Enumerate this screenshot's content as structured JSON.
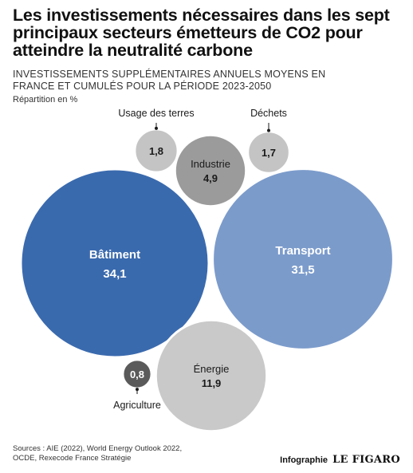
{
  "title": "Les investissements nécessaires dans les sept principaux secteurs émetteurs de CO2 pour atteindre la neutralité carbone",
  "subtitle": "INVESTISSEMENTS SUPPLÉMENTAIRES ANNUELS MOYENS EN FRANCE ET CUMULÉS POUR LA PÉRIODE 2023-2050",
  "unit": "Répartition en %",
  "source": "Sources : AIE (2022), World Energy Outlook 2022, OCDE, Rexecode France Stratégie",
  "credit": {
    "label": "Infographie",
    "brand": "LE FIGARO"
  },
  "chart_data": {
    "type": "bubble",
    "categories": [
      "Bâtiment",
      "Transport",
      "Énergie",
      "Industrie",
      "Usage des terres",
      "Déchets",
      "Agriculture"
    ],
    "values": [
      34.1,
      31.5,
      11.9,
      4.9,
      1.8,
      1.7,
      0.8
    ],
    "value_labels": [
      "34,1",
      "31,5",
      "11,9",
      "4,9",
      "1,8",
      "1,7",
      "0,8"
    ],
    "colors": {
      "Bâtiment": "#3a6aae",
      "Transport": "#7b9bcb",
      "Énergie": "#c9c9c9",
      "Industrie": "#9b9b9b",
      "Usage des terres": "#c4c4c4",
      "Déchets": "#c4c4c4",
      "Agriculture": "#5a5a5a"
    }
  }
}
